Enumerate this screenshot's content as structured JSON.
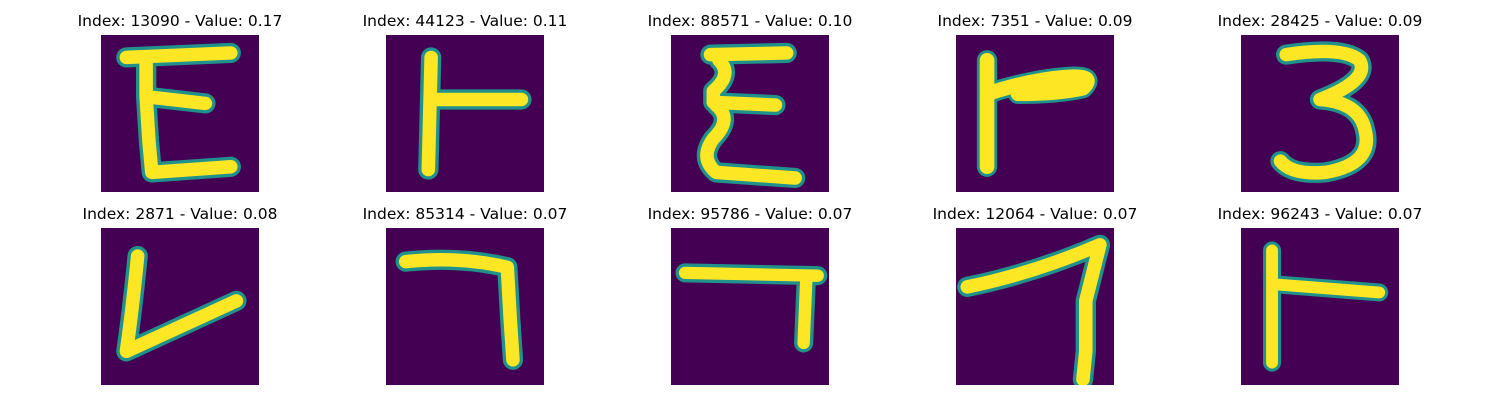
{
  "colors": {
    "background": "#440154",
    "edge": "#21918c",
    "mid": "#5ec962",
    "stroke": "#fde725"
  },
  "panels": [
    {
      "title": "Index: 13090 - Value: 0.17",
      "glyph": "E-like character"
    },
    {
      "title": "Index: 44123 - Value: 0.11",
      "glyph": "T-rotated character"
    },
    {
      "title": "Index: 88571 - Value: 0.10",
      "glyph": "E-like character"
    },
    {
      "title": "Index: 7351 - Value: 0.09",
      "glyph": "F-like character"
    },
    {
      "title": "Index: 28425 - Value: 0.09",
      "glyph": "3-like character"
    },
    {
      "title": "Index: 2871 - Value: 0.08",
      "glyph": "L-like character"
    },
    {
      "title": "Index: 85314 - Value: 0.07",
      "glyph": "7-like character"
    },
    {
      "title": "Index: 95786 - Value: 0.07",
      "glyph": "7-like character"
    },
    {
      "title": "Index: 12064 - Value: 0.07",
      "glyph": "7-like character"
    },
    {
      "title": "Index: 96243 - Value: 0.07",
      "glyph": "T-rotated character"
    }
  ]
}
